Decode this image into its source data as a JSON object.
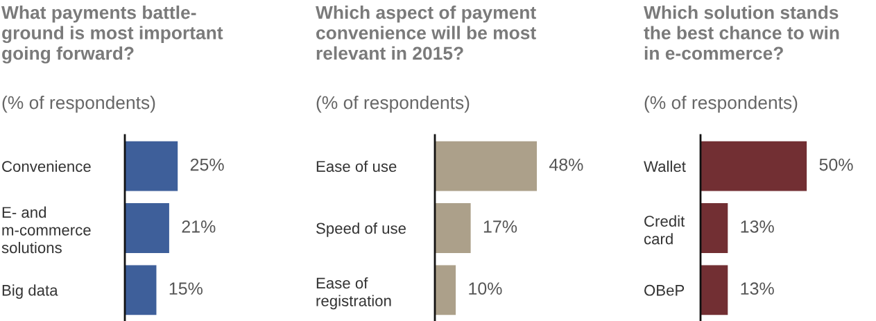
{
  "chart_data": [
    {
      "type": "bar",
      "orientation": "horizontal",
      "title": "What payments battle-\nground is most important\ngoing forward?",
      "subtitle": "(% of respondents)",
      "categories": [
        "Convenience",
        "E- and\nm-commerce\nsolutions",
        "Big data"
      ],
      "values": [
        25,
        21,
        15
      ],
      "value_labels": [
        "25%",
        "21%",
        "15%"
      ],
      "color": "#3e5f9a",
      "tick_labels": "y",
      "grid": false,
      "legend": false
    },
    {
      "type": "bar",
      "orientation": "horizontal",
      "title": "Which aspect of payment\nconvenience will be most\nrelevant in 2015?",
      "subtitle": "(% of respondents)",
      "categories": [
        "Ease of use",
        "Speed of use",
        "Ease of\nregistration"
      ],
      "values": [
        48,
        17,
        10
      ],
      "value_labels": [
        "48%",
        "17%",
        "10%"
      ],
      "color": "#aca08a",
      "tick_labels": "y",
      "grid": false,
      "legend": false
    },
    {
      "type": "bar",
      "orientation": "horizontal",
      "title": "Which solution stands\nthe best chance to win\nin e-commerce?",
      "subtitle": "(% of respondents)",
      "categories": [
        "Wallet",
        "Credit\ncard",
        "OBeP"
      ],
      "values": [
        50,
        13,
        13
      ],
      "value_labels": [
        "50%",
        "13%",
        "13%"
      ],
      "color": "#722f33",
      "tick_labels": "y",
      "grid": false,
      "legend": false
    }
  ]
}
